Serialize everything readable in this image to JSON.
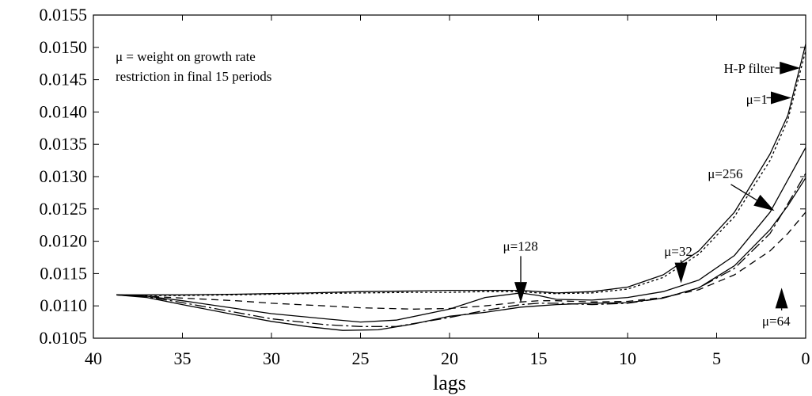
{
  "chart_data": {
    "type": "line",
    "title": "",
    "xlabel": "lags",
    "ylabel": "",
    "xlim": [
      40,
      0
    ],
    "ylim": [
      0.0105,
      0.0155
    ],
    "x_reversed": true,
    "grid": false,
    "x_ticks": [
      "40",
      "35",
      "30",
      "25",
      "20",
      "15",
      "10",
      "5",
      "0"
    ],
    "y_ticks": [
      "0.0105",
      "0.0110",
      "0.0115",
      "0.0120",
      "0.0125",
      "0.0130",
      "0.0135",
      "0.0140",
      "0.0145",
      "0.0150",
      "0.0155"
    ],
    "note_lines": [
      "μ = weight on growth rate",
      "restriction in final 15 periods"
    ],
    "series": [
      {
        "style": "solid",
        "x": [
          38.7,
          37,
          35,
          32,
          30,
          28,
          25,
          22,
          20,
          18,
          16,
          15,
          14,
          12,
          10,
          8,
          6,
          4,
          2,
          1,
          0
        ],
        "values": [
          0.01117,
          0.01117,
          0.01117,
          0.01118,
          0.01119,
          0.0112,
          0.01122,
          0.01123,
          0.01124,
          0.01124,
          0.01124,
          0.01122,
          0.0112,
          0.01122,
          0.01129,
          0.01148,
          0.01185,
          0.01245,
          0.01335,
          0.01395,
          0.01505
        ]
      },
      {
        "style": "dotted",
        "x": [
          38.7,
          37,
          35,
          32,
          30,
          28,
          25,
          22,
          20,
          18,
          16,
          15,
          14,
          12,
          10,
          8,
          6,
          4,
          2,
          1,
          0
        ],
        "values": [
          0.01117,
          0.01116,
          0.01116,
          0.01117,
          0.01118,
          0.01119,
          0.0112,
          0.01121,
          0.01121,
          0.01122,
          0.01122,
          0.0112,
          0.01119,
          0.0112,
          0.01126,
          0.01144,
          0.0118,
          0.01238,
          0.01325,
          0.01388,
          0.01495
        ]
      },
      {
        "style": "dashed",
        "x": [
          38.7,
          37,
          35,
          32,
          30,
          27,
          25,
          22,
          20,
          18,
          16,
          15,
          14,
          12,
          10,
          8,
          6,
          4,
          2,
          1,
          0
        ],
        "values": [
          0.01117,
          0.01115,
          0.01112,
          0.01108,
          0.01104,
          0.011,
          0.01097,
          0.01095,
          0.01096,
          0.011,
          0.01106,
          0.01108,
          0.01108,
          0.01106,
          0.01107,
          0.01113,
          0.01125,
          0.01148,
          0.01185,
          0.01212,
          0.01245
        ]
      },
      {
        "style": "solid",
        "x": [
          38.7,
          37,
          35,
          32,
          30,
          27,
          25,
          23,
          20,
          18,
          16,
          15,
          14,
          12,
          10,
          8,
          6,
          4,
          2,
          1,
          0
        ],
        "values": [
          0.01117,
          0.01115,
          0.01108,
          0.01096,
          0.01088,
          0.0108,
          0.01075,
          0.01078,
          0.01095,
          0.01113,
          0.0112,
          0.01116,
          0.0111,
          0.01109,
          0.01113,
          0.01122,
          0.0114,
          0.01178,
          0.01245,
          0.01295,
          0.01345
        ]
      },
      {
        "style": "dashdot",
        "x": [
          38.7,
          37,
          35,
          32,
          30,
          27,
          25,
          23,
          20,
          18,
          16,
          15,
          14,
          12,
          10,
          8,
          6,
          4,
          2,
          1,
          0
        ],
        "values": [
          0.01117,
          0.01114,
          0.01105,
          0.0109,
          0.0108,
          0.01071,
          0.01068,
          0.01068,
          0.01082,
          0.01093,
          0.01102,
          0.01104,
          0.01104,
          0.01102,
          0.01104,
          0.01112,
          0.01128,
          0.01158,
          0.01212,
          0.01258,
          0.01305
        ]
      },
      {
        "style": "solid",
        "x": [
          38.7,
          37,
          35,
          32,
          30,
          28,
          26,
          24,
          22,
          20,
          18,
          16,
          15,
          14,
          12,
          10,
          8,
          6,
          4,
          2,
          1,
          0
        ],
        "values": [
          0.01117,
          0.01113,
          0.01102,
          0.01086,
          0.01076,
          0.01068,
          0.01062,
          0.01063,
          0.01072,
          0.01084,
          0.0109,
          0.01098,
          0.011,
          0.01102,
          0.01104,
          0.01105,
          0.01112,
          0.01128,
          0.01162,
          0.01218,
          0.01255,
          0.01298
        ]
      }
    ],
    "annotations": [
      {
        "label": "H-P filter",
        "text_x": 4.6,
        "text_y": 0.01468,
        "arrow_from": [
          1.7,
          0.01468
        ],
        "arrow_to": [
          0.3,
          0.01468
        ]
      },
      {
        "label": "μ=1",
        "text_x": 3.35,
        "text_y": 0.0142,
        "arrow_from": [
          2.2,
          0.01422
        ],
        "arrow_to": [
          0.8,
          0.01422
        ]
      },
      {
        "label": "μ=256",
        "text_x": 5.5,
        "text_y": 0.01305,
        "arrow_from": [
          4.2,
          0.01288
        ],
        "arrow_to": [
          1.75,
          0.01247
        ]
      },
      {
        "label": "μ=32",
        "text_x": 7.95,
        "text_y": 0.01185,
        "arrow_from": [
          7.0,
          0.01171
        ],
        "arrow_to": [
          7.0,
          0.01135
        ]
      },
      {
        "label": "μ=128",
        "text_x": 17.0,
        "text_y": 0.01193,
        "arrow_from": [
          16.0,
          0.01177
        ],
        "arrow_to": [
          16.0,
          0.01105
        ]
      },
      {
        "label": "μ=64",
        "text_x": 2.45,
        "text_y": 0.01077,
        "arrow_from": [
          1.35,
          0.01093
        ],
        "arrow_to": [
          1.35,
          0.01128
        ]
      }
    ]
  }
}
